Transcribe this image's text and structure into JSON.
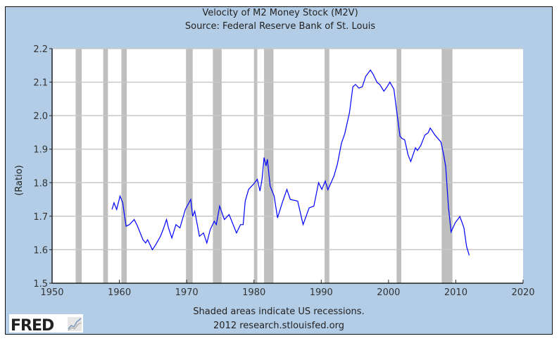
{
  "chart_data": {
    "type": "line",
    "title": "Velocity of M2 Money Stock (M2V)",
    "subtitle": "Source: Federal Reserve Bank of St. Louis",
    "xlabel": "",
    "ylabel": "(Ratio)",
    "xlim": [
      1950,
      2020
    ],
    "ylim": [
      1.5,
      2.2
    ],
    "x_ticks": [
      "1950",
      "1960",
      "1970",
      "1980",
      "1990",
      "2000",
      "2010",
      "2020"
    ],
    "y_ticks": [
      "1.5",
      "1.6",
      "1.7",
      "1.8",
      "1.9",
      "2.0",
      "2.1",
      "2.2"
    ],
    "grid": true,
    "line_color": "#0000ff",
    "recession_color": "#bfbfbf",
    "background_color": "#b4cde6",
    "recessions": [
      [
        1953.5,
        1954.4
      ],
      [
        1957.6,
        1958.3
      ],
      [
        1960.3,
        1961.1
      ],
      [
        1969.9,
        1970.9
      ],
      [
        1973.9,
        1975.2
      ],
      [
        1980.0,
        1980.5
      ],
      [
        1981.5,
        1982.9
      ],
      [
        1990.5,
        1991.2
      ],
      [
        2001.2,
        2001.9
      ],
      [
        2007.9,
        2009.5
      ]
    ],
    "series": [
      {
        "x": [
          1958.9,
          1959.2,
          1959.6,
          1960.1,
          1960.5,
          1961.0,
          1961.5,
          1962.2,
          1962.7,
          1963.5,
          1963.9,
          1964.2,
          1964.9,
          1965.4,
          1966.1,
          1966.5,
          1967.0,
          1967.3,
          1967.8,
          1968.4,
          1969.0,
          1969.8,
          1970.6,
          1970.9,
          1971.2,
          1971.9,
          1972.5,
          1973.0,
          1973.5,
          1974.1,
          1974.4,
          1974.9,
          1975.6,
          1976.3,
          1977.4,
          1978.0,
          1978.4,
          1978.7,
          1979.2,
          1979.9,
          1980.5,
          1980.9,
          1981.2,
          1981.5,
          1981.8,
          1982.0,
          1982.4,
          1983.0,
          1983.5,
          1984.2,
          1984.9,
          1985.4,
          1986.5,
          1987.3,
          1988.2,
          1988.9,
          1989.6,
          1990.1,
          1990.6,
          1991.0,
          1991.9,
          1992.4,
          1993.0,
          1993.5,
          1994.2,
          1994.7,
          1995.1,
          1995.6,
          1996.1,
          1996.6,
          1997.3,
          1997.7,
          1998.3,
          1998.7,
          1999.3,
          1999.8,
          2000.2,
          2000.8,
          2001.2,
          2001.7,
          2002.0,
          2002.4,
          2002.9,
          2003.3,
          2004.0,
          2004.3,
          2004.8,
          2005.4,
          2005.9,
          2006.2,
          2006.9,
          2007.8,
          2008.2,
          2008.5,
          2008.9,
          2009.3,
          2009.9,
          2010.6,
          2011.2,
          2011.6,
          2012.0
        ],
        "y": [
          1.72,
          1.74,
          1.72,
          1.76,
          1.74,
          1.67,
          1.675,
          1.69,
          1.67,
          1.63,
          1.62,
          1.63,
          1.6,
          1.615,
          1.64,
          1.66,
          1.69,
          1.665,
          1.635,
          1.675,
          1.665,
          1.72,
          1.75,
          1.7,
          1.715,
          1.64,
          1.65,
          1.62,
          1.66,
          1.685,
          1.675,
          1.73,
          1.69,
          1.705,
          1.65,
          1.675,
          1.675,
          1.745,
          1.78,
          1.795,
          1.81,
          1.775,
          1.81,
          1.875,
          1.85,
          1.87,
          1.79,
          1.76,
          1.695,
          1.74,
          1.78,
          1.75,
          1.745,
          1.675,
          1.725,
          1.73,
          1.8,
          1.78,
          1.805,
          1.779,
          1.82,
          1.855,
          1.918,
          1.946,
          2.009,
          2.086,
          2.093,
          2.082,
          2.086,
          2.117,
          2.136,
          2.124,
          2.099,
          2.093,
          2.073,
          2.086,
          2.1,
          2.079,
          2.016,
          1.939,
          1.932,
          1.928,
          1.883,
          1.863,
          1.904,
          1.896,
          1.911,
          1.942,
          1.949,
          1.963,
          1.942,
          1.921,
          1.883,
          1.848,
          1.729,
          1.653,
          1.68,
          1.699,
          1.666,
          1.61,
          1.583
        ]
      }
    ]
  },
  "footer": {
    "note": "Shaded areas indicate US recessions.",
    "credit": "2012 research.stlouisfed.org",
    "logo_text": "FRED"
  }
}
